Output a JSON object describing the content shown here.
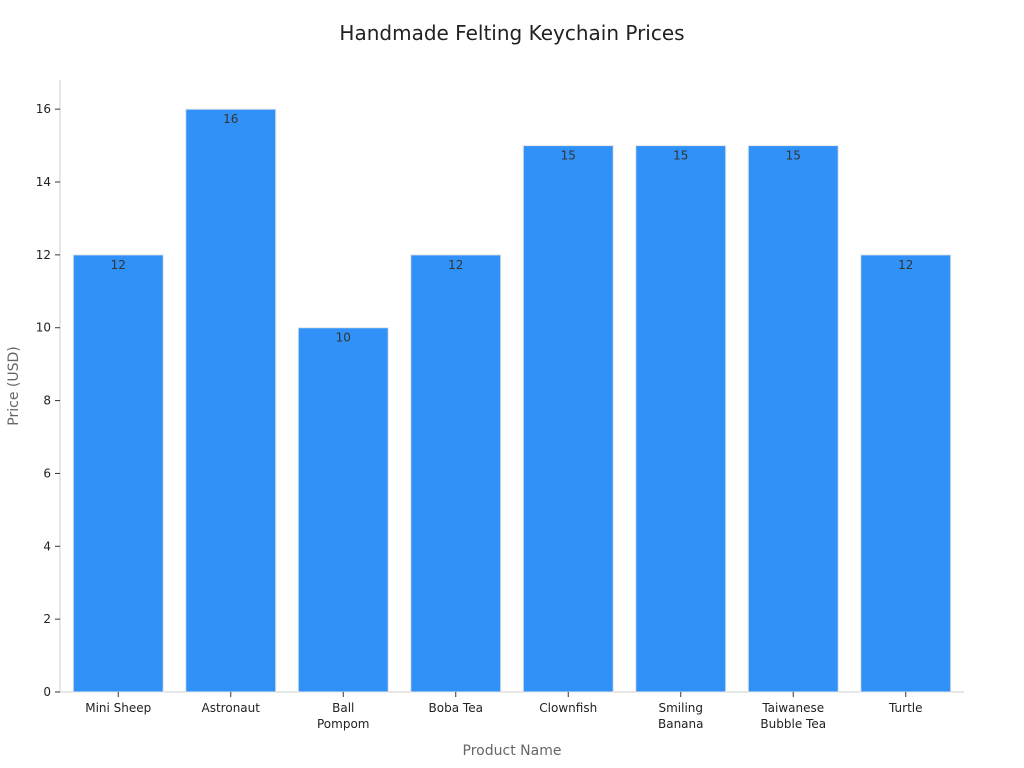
{
  "chart_data": {
    "type": "bar",
    "title": "Handmade Felting Keychain Prices",
    "xlabel": "Product Name",
    "ylabel": "Price (USD)",
    "categories": [
      [
        "Mini Sheep"
      ],
      [
        "Astronaut"
      ],
      [
        "Ball",
        "Pompom"
      ],
      [
        "Boba Tea"
      ],
      [
        "Clownfish"
      ],
      [
        "Smiling",
        "Banana"
      ],
      [
        "Taiwanese",
        "Bubble Tea"
      ],
      [
        "Turtle"
      ]
    ],
    "values": [
      12,
      16,
      10,
      12,
      15,
      15,
      15,
      12
    ],
    "ylim": [
      0,
      16.8
    ],
    "yticks": [
      0,
      2,
      4,
      6,
      8,
      10,
      12,
      14,
      16
    ],
    "bar_color": "#3092f8",
    "bar_edge_color": "#e6e6e6",
    "grid": false,
    "legend": "none"
  }
}
